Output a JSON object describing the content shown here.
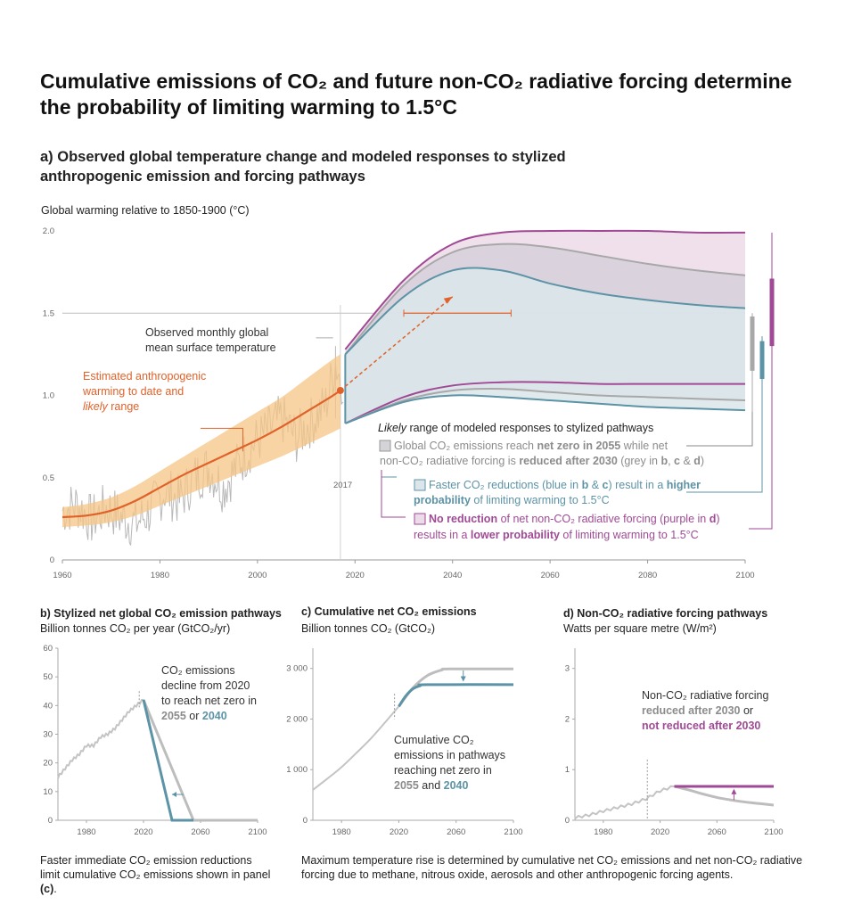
{
  "title": "Cumulative emissions of CO₂ and future non-CO₂ radiative forcing determine the probability of limiting warming to 1.5°C",
  "panel_a": {
    "title": "a) Observed global temperature change and modeled responses to stylized anthropogenic emission and forcing pathways",
    "ylabel": "Global warming relative to 1850-1900 (°C)",
    "ann_observed_1": "Observed monthly global",
    "ann_observed_2": "mean surface temperature",
    "ann_est_1": "Estimated anthropogenic",
    "ann_est_2": "warming to date and",
    "ann_est_3_italic": "likely",
    "ann_est_3_rest": " range",
    "ann_2017": "2017",
    "legend_heading_italic": "Likely",
    "legend_heading_rest": " range of modeled responses to stylized pathways",
    "legend_grey": [
      {
        "t": "Global CO₂ emissions reach ",
        "b": false
      },
      {
        "t": "net zero in 2055",
        "b": true
      },
      {
        "t": " while net",
        "b": false
      }
    ],
    "legend_grey_2": [
      {
        "t": "non-CO₂ radiative forcing is ",
        "b": false
      },
      {
        "t": "reduced after 2030",
        "b": true
      },
      {
        "t": " (grey in ",
        "b": false
      },
      {
        "t": "b",
        "b": true
      },
      {
        "t": ", ",
        "b": false
      },
      {
        "t": "c",
        "b": true
      },
      {
        "t": " & ",
        "b": false
      },
      {
        "t": "d",
        "b": true
      },
      {
        "t": ")",
        "b": false
      }
    ],
    "legend_blue": [
      {
        "t": "Faster CO₂ reductions (blue in ",
        "b": false
      },
      {
        "t": "b",
        "b": true
      },
      {
        "t": " & ",
        "b": false
      },
      {
        "t": "c",
        "b": true
      },
      {
        "t": ") result in a ",
        "b": false
      },
      {
        "t": "higher",
        "b": true
      }
    ],
    "legend_blue_2": [
      {
        "t": "probability",
        "b": true
      },
      {
        "t": " of limiting warming to 1.5°C",
        "b": false
      }
    ],
    "legend_purple": [
      {
        "t": "No reduction",
        "b": true
      },
      {
        "t": " of net non-CO₂ radiative forcing (purple in ",
        "b": false
      },
      {
        "t": "d",
        "b": true
      },
      {
        "t": ")",
        "b": false
      }
    ],
    "legend_purple_2": [
      {
        "t": "results in a ",
        "b": false
      },
      {
        "t": "lower probability",
        "b": true
      },
      {
        "t": " of limiting warming to 1.5°C",
        "b": false
      }
    ]
  },
  "panel_b": {
    "title": "b) Stylized net global CO₂ emission pathways",
    "subtitle": "Billion tonnes CO₂ per year (GtCO₂/yr)",
    "ann": [
      "CO₂ emissions",
      "decline from 2020",
      "to reach net zero in"
    ],
    "ann_last": [
      {
        "t": "2055",
        "c": "grey"
      },
      {
        "t": " or ",
        "c": "plain"
      },
      {
        "t": "2040",
        "c": "blue"
      }
    ]
  },
  "panel_c": {
    "title": "c) Cumulative net CO₂ emissions",
    "subtitle": "Billion tonnes CO₂ (GtCO₂)",
    "ann": [
      "Cumulative CO₂",
      "emissions in pathways",
      "reaching net zero in"
    ],
    "ann_last": [
      {
        "t": "2055",
        "c": "grey"
      },
      {
        "t": " and ",
        "c": "plain"
      },
      {
        "t": "2040",
        "c": "blue"
      }
    ]
  },
  "panel_d": {
    "title": "d) Non-CO₂ radiative forcing pathways",
    "subtitle": "Watts per square metre (W/m²)",
    "ann_1": "Non-CO₂ radiative forcing",
    "ann_2_bold": "reduced after 2030",
    "ann_2_rest": " or",
    "ann_3": "not reduced after 2030"
  },
  "footnote_left": [
    {
      "t": "Faster immediate CO₂ emission reductions limit cumulative CO₂ emissions shown in panel ",
      "b": false
    },
    {
      "t": "(c)",
      "b": true
    },
    {
      "t": ".",
      "b": false
    }
  ],
  "footnote_right": "Maximum temperature rise is determined by cumulative net CO₂ emissions and net non-CO₂ radiative forcing due to methane, nitrous oxide, aerosols and other anthropogenic forcing agents.",
  "colors": {
    "orange": "#e0622a",
    "orange_band": "#f5c586",
    "grey": "#a8a8a8",
    "grey_dark": "#8c8c8c",
    "blue": "#5d93a6",
    "purple": "#a04a95",
    "purple_fill": "#ecdbe9",
    "blue_fill": "#dbe6ea",
    "grey_fill": "#c9c9d2"
  },
  "chart_data": [
    {
      "type": "line",
      "panel": "a",
      "ylabel": "Global warming relative to 1850-1900 (°C)",
      "xlim": [
        1960,
        2100
      ],
      "ylim": [
        0,
        2.0
      ],
      "x_ticks": [
        1960,
        1980,
        2000,
        2020,
        2040,
        2060,
        2080,
        2100
      ],
      "y_ticks": [
        0,
        0.5,
        1.0,
        1.5,
        2.0
      ],
      "y_tick_labels": [
        "0",
        "0.5",
        "1.0",
        "1.5",
        "2.0"
      ],
      "reference_line": 1.5,
      "observed_annotation_year": 2017,
      "anthropogenic_warming": {
        "x": [
          1960,
          1965,
          1970,
          1975,
          1980,
          1985,
          1990,
          1995,
          2000,
          2005,
          2010,
          2015,
          2017
        ],
        "central": [
          0.26,
          0.27,
          0.3,
          0.36,
          0.44,
          0.52,
          0.59,
          0.66,
          0.73,
          0.81,
          0.9,
          0.99,
          1.03
        ],
        "low": [
          0.2,
          0.21,
          0.23,
          0.27,
          0.33,
          0.39,
          0.45,
          0.51,
          0.57,
          0.63,
          0.7,
          0.77,
          0.8
        ],
        "high": [
          0.32,
          0.34,
          0.38,
          0.45,
          0.54,
          0.63,
          0.72,
          0.81,
          0.9,
          0.99,
          1.1,
          1.21,
          1.25
        ]
      },
      "observed_monthly": {
        "x": [
          1960,
          1963,
          1966,
          1969,
          1972,
          1975,
          1978,
          1981,
          1984,
          1987,
          1990,
          1993,
          1996,
          1999,
          2002,
          2005,
          2008,
          2011,
          2014,
          2016,
          2017
        ],
        "y": [
          0.3,
          0.34,
          0.24,
          0.32,
          0.26,
          0.22,
          0.3,
          0.42,
          0.36,
          0.5,
          0.56,
          0.44,
          0.58,
          0.7,
          0.78,
          0.86,
          0.74,
          0.84,
          0.94,
          1.2,
          1.1
        ]
      },
      "series": [
        {
          "name": "Purple",
          "x": [
            2018,
            2030,
            2040,
            2050,
            2060,
            2070,
            2080,
            2090,
            2100
          ],
          "upper": [
            1.28,
            1.7,
            1.92,
            1.99,
            2.0,
            2.0,
            2.0,
            1.99,
            1.99
          ],
          "lower": [
            0.83,
            0.99,
            1.06,
            1.08,
            1.08,
            1.07,
            1.07,
            1.07,
            1.07
          ]
        },
        {
          "name": "Grey",
          "x": [
            2018,
            2030,
            2040,
            2050,
            2060,
            2070,
            2080,
            2090,
            2100
          ],
          "upper": [
            1.25,
            1.67,
            1.87,
            1.92,
            1.9,
            1.85,
            1.8,
            1.76,
            1.73
          ],
          "lower": [
            0.83,
            0.97,
            1.03,
            1.04,
            1.02,
            1.0,
            0.99,
            0.98,
            0.97
          ]
        },
        {
          "name": "Blue",
          "x": [
            2018,
            2030,
            2040,
            2050,
            2060,
            2070,
            2080,
            2090,
            2100
          ],
          "upper": [
            1.25,
            1.6,
            1.76,
            1.76,
            1.68,
            1.62,
            1.58,
            1.55,
            1.53
          ],
          "lower": [
            0.83,
            0.96,
            1.0,
            0.99,
            0.97,
            0.95,
            0.93,
            0.92,
            0.91
          ]
        }
      ],
      "range_bars_2100": [
        {
          "name": "Grey",
          "low": 0.86,
          "high": 1.5,
          "likely_low": 1.15,
          "likely_high": 1.48
        },
        {
          "name": "Blue",
          "low": 0.86,
          "high": 1.36,
          "likely_low": 1.1,
          "likely_high": 1.33
        },
        {
          "name": "Purple",
          "low": 1.04,
          "high": 1.99,
          "likely_low": 1.3,
          "likely_high": 1.71
        }
      ],
      "projection_arrow": {
        "from": [
          2017,
          1.03
        ],
        "to": [
          2040,
          1.6
        ]
      },
      "horizontal_range_at_1_5": [
        2030,
        2052
      ]
    },
    {
      "type": "line",
      "panel": "b",
      "xlim": [
        1960,
        2100
      ],
      "ylim": [
        0,
        60
      ],
      "x_ticks": [
        1980,
        2020,
        2060,
        2100
      ],
      "y_ticks": [
        0,
        10,
        20,
        30,
        40,
        50,
        60
      ],
      "series": [
        {
          "name": "Historical",
          "x": [
            1960,
            1965,
            1970,
            1975,
            1980,
            1985,
            1990,
            1995,
            2000,
            2005,
            2010,
            2015,
            2020
          ],
          "values": [
            15,
            18,
            21,
            23,
            26,
            26,
            29,
            30,
            32,
            35,
            38,
            40,
            42
          ]
        },
        {
          "name": "Grey",
          "x": [
            2020,
            2055,
            2100
          ],
          "values": [
            42,
            0,
            0
          ]
        },
        {
          "name": "Blue",
          "x": [
            2020,
            2040,
            2055
          ],
          "values": [
            42,
            0,
            0
          ]
        }
      ]
    },
    {
      "type": "line",
      "panel": "c",
      "xlim": [
        1960,
        2100
      ],
      "ylim": [
        0,
        3400
      ],
      "x_ticks": [
        1980,
        2020,
        2060,
        2100
      ],
      "y_ticks": [
        0,
        1000,
        2000,
        3000
      ],
      "y_tick_labels": [
        "0",
        "1 000",
        "2 000",
        "3 000"
      ],
      "series": [
        {
          "name": "Historical",
          "x": [
            1960,
            1970,
            1980,
            1990,
            2000,
            2010,
            2020
          ],
          "values": [
            600,
            820,
            1050,
            1320,
            1600,
            1920,
            2250
          ]
        },
        {
          "name": "Grey",
          "x": [
            2020,
            2030,
            2040,
            2050,
            2055,
            2100
          ],
          "values": [
            2250,
            2620,
            2860,
            2970,
            2990,
            2990
          ]
        },
        {
          "name": "Blue",
          "x": [
            2020,
            2025,
            2030,
            2035,
            2040,
            2100
          ],
          "values": [
            2250,
            2460,
            2600,
            2660,
            2680,
            2680
          ]
        }
      ]
    },
    {
      "type": "line",
      "panel": "d",
      "xlim": [
        1960,
        2100
      ],
      "ylim": [
        0,
        3.4
      ],
      "x_ticks": [
        1980,
        2020,
        2060,
        2100
      ],
      "y_ticks": [
        0,
        1,
        2,
        3
      ],
      "series": [
        {
          "name": "Historical",
          "x": [
            1960,
            1970,
            1980,
            1990,
            2000,
            2010,
            2020,
            2030
          ],
          "values": [
            0.05,
            0.1,
            0.18,
            0.25,
            0.32,
            0.42,
            0.58,
            0.67
          ]
        },
        {
          "name": "Grey",
          "x": [
            2030,
            2040,
            2050,
            2060,
            2070,
            2080,
            2090,
            2100
          ],
          "values": [
            0.67,
            0.6,
            0.52,
            0.45,
            0.4,
            0.36,
            0.33,
            0.3
          ]
        },
        {
          "name": "Purple",
          "x": [
            2030,
            2100
          ],
          "values": [
            0.67,
            0.67
          ]
        }
      ]
    }
  ]
}
